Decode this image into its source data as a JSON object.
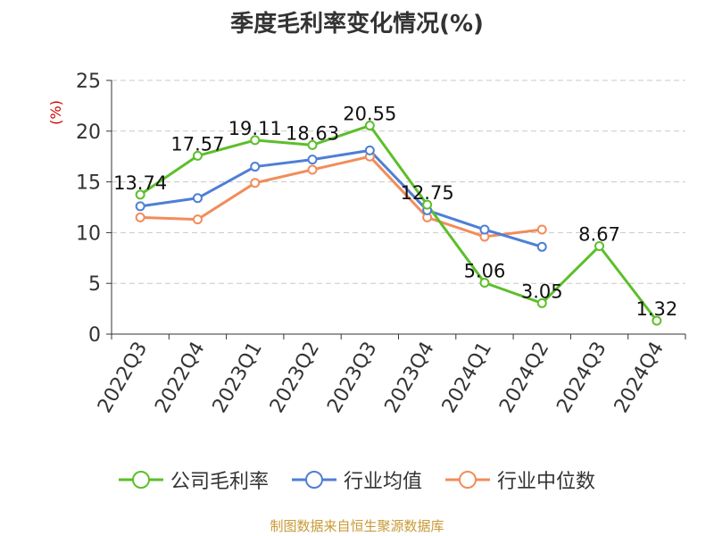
{
  "title": "季度毛利率变化情况(%)",
  "source": "制图数据来自恒生聚源数据库",
  "chart_data": {
    "type": "line",
    "title": "季度毛利率变化情况(%)",
    "ylabel": "(%)",
    "ylim": [
      0,
      25
    ],
    "yticks": [
      0,
      5,
      10,
      15,
      20,
      25
    ],
    "grid": true,
    "legend_position": "bottom",
    "categories": [
      "2022Q3",
      "2022Q4",
      "2023Q1",
      "2023Q2",
      "2023Q3",
      "2023Q4",
      "2024Q1",
      "2024Q2",
      "2024Q3",
      "2024Q4"
    ],
    "series": [
      {
        "name": "公司毛利率",
        "color": "#5cbf2a",
        "values": [
          13.74,
          17.57,
          19.11,
          18.63,
          20.55,
          12.75,
          5.06,
          3.05,
          8.67,
          1.32
        ],
        "labels": [
          "13.74",
          "17.57",
          "19.11",
          "18.63",
          "20.55",
          "12.75",
          "5.06",
          "3.05",
          "8.67",
          "1.32"
        ]
      },
      {
        "name": "行业均值",
        "color": "#4e7fd6",
        "values": [
          12.6,
          13.4,
          16.5,
          17.2,
          18.1,
          12.2,
          10.3,
          8.6,
          null,
          null
        ]
      },
      {
        "name": "行业中位数",
        "color": "#f28c5a",
        "values": [
          11.5,
          11.3,
          14.9,
          16.2,
          17.5,
          11.5,
          9.6,
          10.3,
          null,
          null
        ]
      }
    ]
  }
}
